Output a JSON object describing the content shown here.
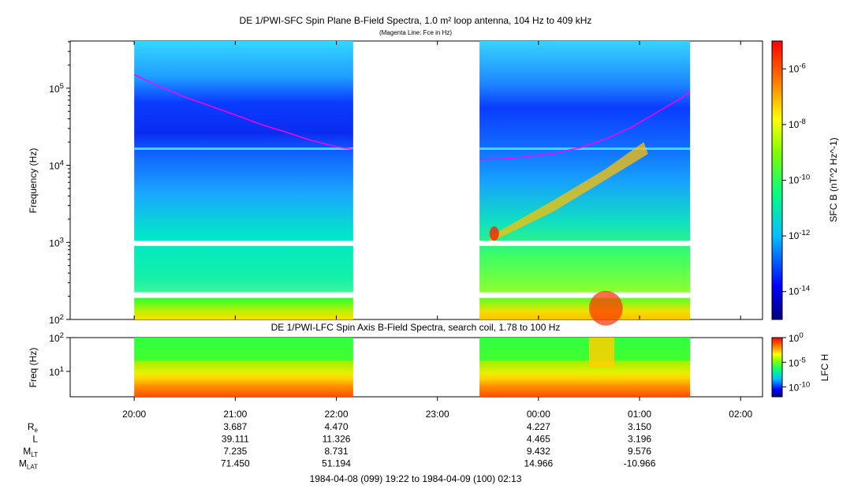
{
  "chart_data": [
    {
      "type": "heatmap",
      "title": "DE 1/PWI-SFC  Spin Plane B-Field Spectra, 1.0 m² loop antenna, 104 Hz to 409 kHz",
      "subtitle": "(Magenta Line: Fce in Hz)",
      "ylabel": "Frequency (Hz)",
      "yscale": "log",
      "ylim": [
        100,
        409000
      ],
      "yticks": [
        "10^2",
        "10^3",
        "10^4",
        "10^5"
      ],
      "colorbar": {
        "label": "SFC B (nT^2 Hz^-1)",
        "scale": "log",
        "range": [
          1e-15,
          1e-05
        ],
        "ticks": [
          "10^-6",
          "10^-8",
          "10^-10",
          "10^-12",
          "10^-14"
        ]
      },
      "data_intervals": [
        [
          "20:00",
          "22:10"
        ],
        [
          "23:25",
          "01:30"
        ]
      ],
      "series": [
        {
          "name": "Fce",
          "color": "#ff00ff",
          "segments": [
            {
              "x": [
                "20:00",
                "20:15",
                "20:30",
                "20:45",
                "21:00",
                "21:15",
                "21:30",
                "21:45",
                "22:00",
                "22:10"
              ],
              "y": [
                150000,
                105000,
                77000,
                59000,
                45000,
                34000,
                27000,
                21000,
                17500,
                16000
              ]
            },
            {
              "x": [
                "23:25",
                "23:40",
                "23:55",
                "00:10",
                "00:25",
                "00:40",
                "00:55",
                "01:10",
                "01:25",
                "01:30"
              ],
              "y": [
                12000,
                12200,
                13000,
                14500,
                17000,
                22000,
                31000,
                48000,
                75000,
                90000
              ]
            }
          ]
        }
      ]
    },
    {
      "type": "heatmap",
      "title": "DE 1/PWI-LFC  Spin Axis B-Field Spectra, search coil, 1.78 to 100 Hz",
      "ylabel": "Freq (Hz)",
      "yscale": "log",
      "ylim": [
        1.78,
        100
      ],
      "yticks": [
        "10^2",
        "10^1"
      ],
      "colorbar": {
        "label": "LFC H",
        "scale": "log",
        "range": [
          1e-12,
          1
        ],
        "ticks": [
          "10^0",
          "10^-5",
          "10^-10"
        ]
      },
      "data_intervals": [
        [
          "20:00",
          "22:10"
        ],
        [
          "23:25",
          "01:30"
        ]
      ]
    }
  ],
  "x_axis": {
    "range": [
      "19:22",
      "02:13"
    ],
    "ticks": [
      "20:00",
      "21:00",
      "22:00",
      "23:00",
      "00:00",
      "01:00",
      "02:00"
    ]
  },
  "ephemeris": {
    "times": [
      "21:00",
      "22:00",
      "00:00",
      "01:00"
    ],
    "rows": [
      {
        "label": "R",
        "sub": "e",
        "values": [
          "3.687",
          "4.470",
          "4.227",
          "3.150"
        ]
      },
      {
        "label": "L",
        "sub": "",
        "values": [
          "39.111",
          "11.326",
          "4.465",
          "3.196"
        ]
      },
      {
        "label": "M",
        "sub": "LT",
        "values": [
          "7.235",
          "8.731",
          "9.432",
          "9.576"
        ]
      },
      {
        "label": "M",
        "sub": "LAT",
        "values": [
          "71.450",
          "51.194",
          "14.966",
          "-10.966"
        ]
      }
    ]
  },
  "time_range": "1984-04-08 (099) 19:22 to 1984-04-09 (100) 02:13"
}
